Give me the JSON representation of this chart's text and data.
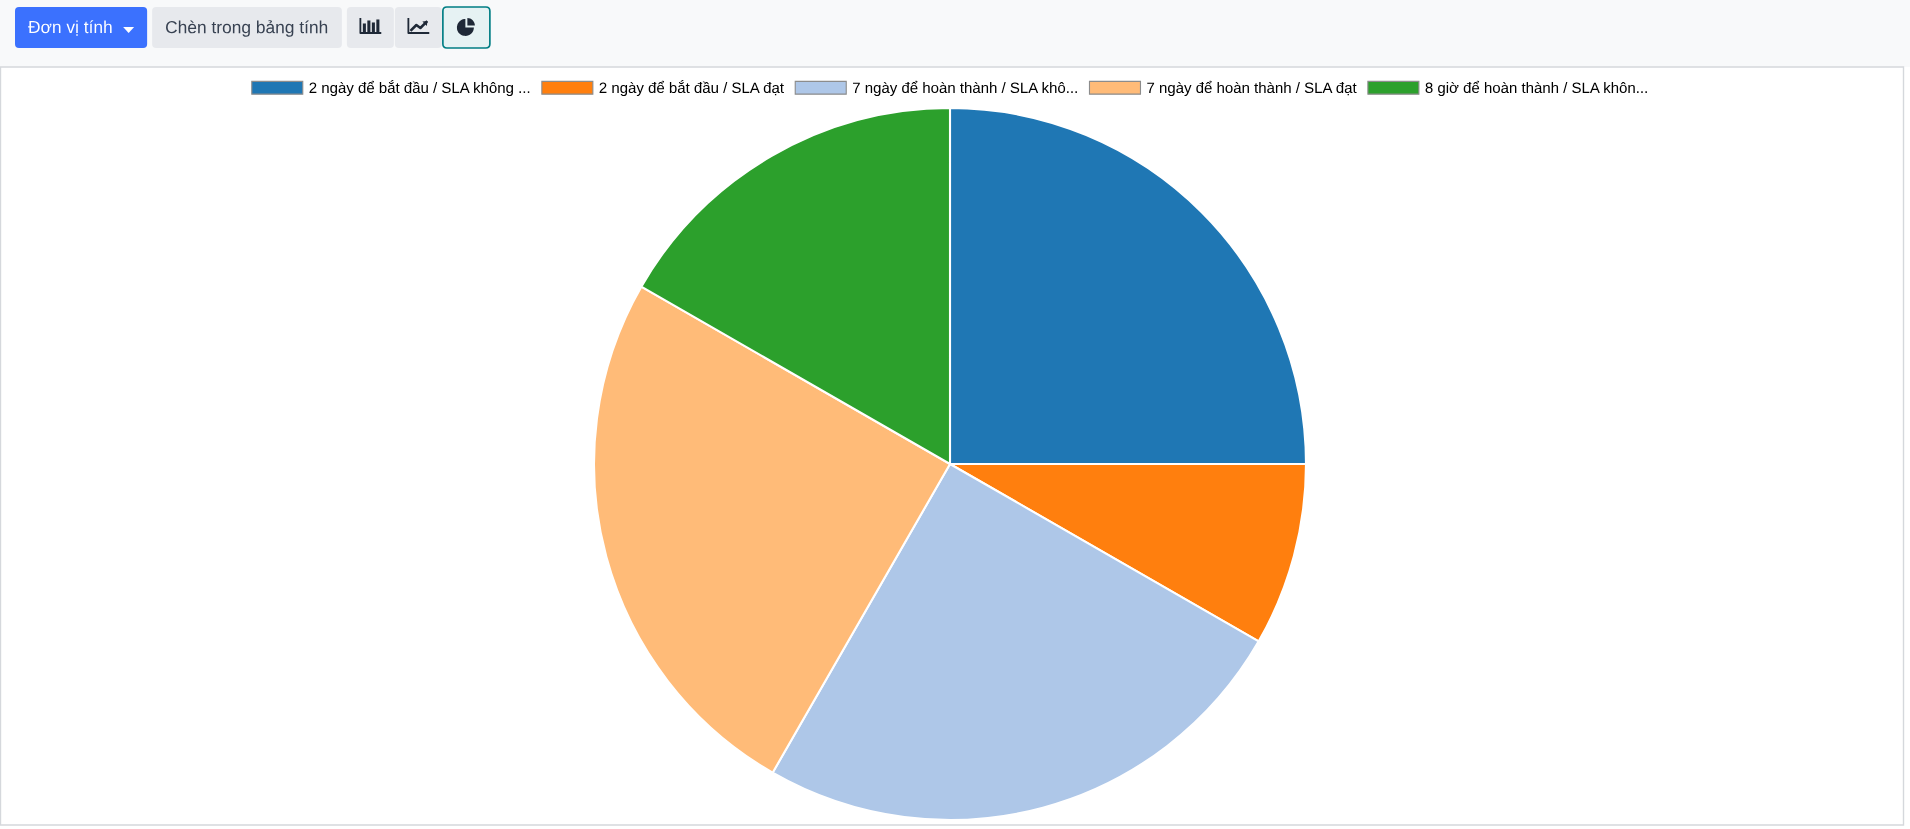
{
  "chart_data": {
    "type": "pie",
    "categories": [
      "2 ngày để bắt đầu / SLA không ...",
      "2 ngày để bắt đầu / SLA đạt",
      "7 ngày để hoàn thành / SLA khô...",
      "7 ngày để hoàn thành / SLA đạt",
      "8 giờ để hoàn thành / SLA khôn..."
    ],
    "values": [
      25,
      8.3,
      25,
      25,
      16.7
    ],
    "colors": [
      "#1f77b4",
      "#ff7f0e",
      "#aec7e8",
      "#ffbb78",
      "#2ca02c"
    ],
    "legend": "top",
    "annotations": [
      "Đơn vị tính",
      "Chèn trong bảng tính"
    ]
  }
}
